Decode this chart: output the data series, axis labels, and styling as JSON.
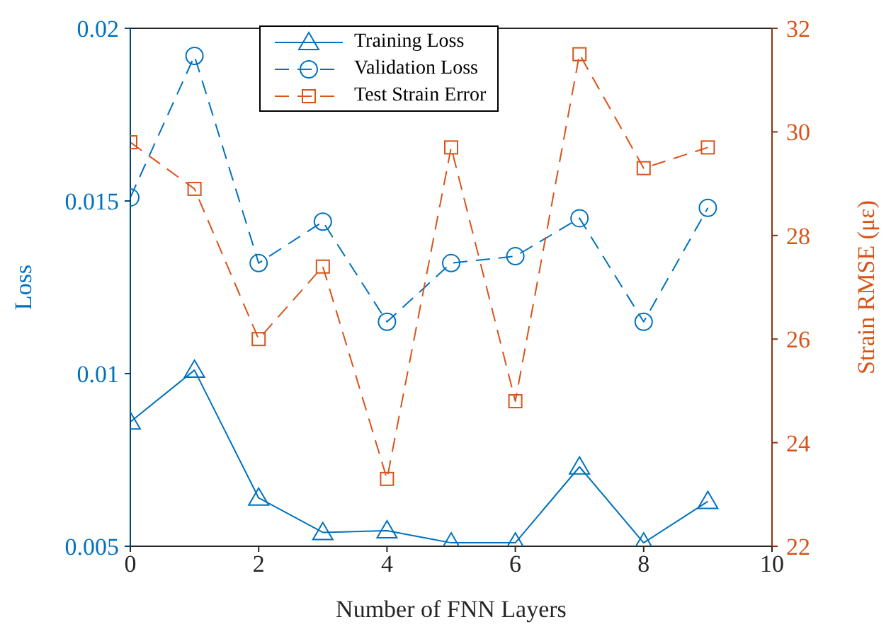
{
  "chart_data": {
    "type": "line",
    "xlabel": "Number of FNN Layers",
    "ylabel": "Loss",
    "y2label": "Strain RMSE (με)",
    "x": [
      0,
      1,
      2,
      3,
      4,
      5,
      6,
      7,
      8,
      9
    ],
    "series": [
      {
        "name": "Training Loss",
        "color": "#0072bd",
        "marker": "triangle",
        "line_style": "solid",
        "values": [
          0.0086,
          0.0101,
          0.0064,
          0.0054,
          0.00545,
          0.0051,
          0.0051,
          0.0073,
          0.0051,
          0.0063
        ]
      },
      {
        "name": "Validation Loss",
        "color": "#0072bd",
        "marker": "circle",
        "line_style": "dashed",
        "values": [
          0.0151,
          0.0192,
          0.0132,
          0.0144,
          0.0115,
          0.0132,
          0.0134,
          0.0145,
          0.0115,
          0.0148
        ]
      },
      {
        "name": "Test Strain Error",
        "color": "#d95319",
        "marker": "square",
        "line_style": "dashed",
        "axis": "y2",
        "values": [
          29.8,
          28.9,
          26.0,
          27.4,
          23.3,
          29.7,
          24.8,
          31.5,
          29.3,
          29.7
        ]
      }
    ],
    "xlim": [
      0,
      10
    ],
    "xticks": [
      0,
      2,
      4,
      6,
      8,
      10
    ],
    "ylim": [
      0.005,
      0.02
    ],
    "yticks": [
      0.005,
      0.01,
      0.015,
      0.02
    ],
    "y2lim": [
      22,
      32
    ],
    "y2ticks": [
      22,
      24,
      26,
      28,
      30,
      32
    ],
    "legend": "top",
    "grid": false
  }
}
